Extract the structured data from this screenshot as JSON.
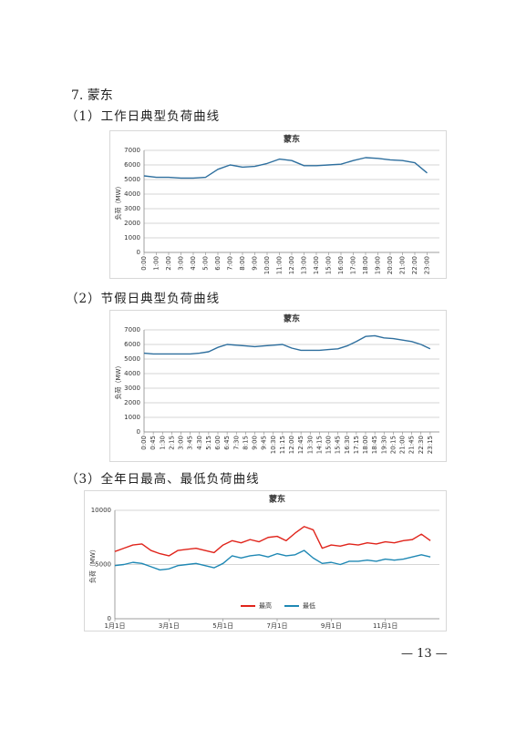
{
  "heading": "7. 蒙东",
  "captions": [
    "（1）工作日典型负荷曲线",
    "（2）节假日典型负荷曲线",
    "（3）全年日最高、最低负荷曲线"
  ],
  "page_number": "— 13 —",
  "chart_data": [
    {
      "type": "line",
      "title": "蒙东",
      "y_label": "负荷（MW）",
      "color": "#2e6f9e",
      "grid": true,
      "rotate_x_labels": true,
      "categories": [
        "0:00",
        "1:00",
        "2:00",
        "3:00",
        "4:00",
        "5:00",
        "6:00",
        "7:00",
        "8:00",
        "9:00",
        "10:00",
        "11:00",
        "12:00",
        "13:00",
        "14:00",
        "15:00",
        "16:00",
        "17:00",
        "18:00",
        "19:00",
        "20:00",
        "21:00",
        "22:00",
        "23:00"
      ],
      "values": [
        5250,
        5150,
        5150,
        5100,
        5100,
        5150,
        5700,
        6000,
        5850,
        5900,
        6100,
        6400,
        6300,
        5950,
        5950,
        6000,
        6050,
        6300,
        6500,
        6450,
        6350,
        6300,
        6150,
        5450
      ],
      "ylim": [
        0,
        7000
      ],
      "yticks": [
        0,
        1000,
        2000,
        3000,
        4000,
        5000,
        6000,
        7000
      ]
    },
    {
      "type": "line",
      "title": "蒙东",
      "y_label": "负荷（MW）",
      "color": "#2e6f9e",
      "grid": true,
      "rotate_x_labels": true,
      "categories": [
        "0:00",
        "0:45",
        "1:30",
        "2:15",
        "3:00",
        "3:45",
        "4:30",
        "5:15",
        "6:00",
        "6:45",
        "7:30",
        "8:15",
        "9:00",
        "9:45",
        "10:30",
        "11:15",
        "12:00",
        "12:45",
        "13:30",
        "14:15",
        "15:00",
        "15:45",
        "16:30",
        "17:15",
        "18:00",
        "18:45",
        "19:30",
        "20:15",
        "21:00",
        "21:45",
        "22:30",
        "23:15"
      ],
      "values": [
        5400,
        5350,
        5350,
        5350,
        5350,
        5350,
        5400,
        5500,
        5800,
        6000,
        5950,
        5900,
        5850,
        5900,
        5950,
        6000,
        5750,
        5600,
        5600,
        5600,
        5650,
        5700,
        5900,
        6200,
        6550,
        6600,
        6450,
        6400,
        6300,
        6200,
        6000,
        5700
      ],
      "ylim": [
        0,
        7000
      ],
      "yticks": [
        0,
        1000,
        2000,
        3000,
        4000,
        5000,
        6000,
        7000
      ]
    },
    {
      "type": "line",
      "title": "蒙东",
      "y_label": "负荷（MW）",
      "grid": true,
      "rotate_x_labels": false,
      "legend": "bottom",
      "categories": [
        "1月1日",
        null,
        null,
        null,
        null,
        null,
        "3月1日",
        null,
        null,
        null,
        null,
        null,
        "5月1日",
        null,
        null,
        null,
        null,
        null,
        "7月1日",
        null,
        null,
        null,
        null,
        null,
        "9月1日",
        null,
        null,
        null,
        null,
        null,
        "11月1日",
        null,
        null,
        null,
        null,
        null
      ],
      "series": [
        {
          "name": "最高",
          "color": "#e0241b",
          "values": [
            6200,
            6500,
            6800,
            6900,
            6300,
            6000,
            5800,
            6300,
            6400,
            6500,
            6300,
            6100,
            6800,
            7200,
            7000,
            7300,
            7100,
            7500,
            7600,
            7200,
            7900,
            8500,
            8200,
            6500,
            6800,
            6700,
            6900,
            6800,
            7000,
            6900,
            7100,
            7000,
            7200,
            7300,
            7800,
            7200
          ]
        },
        {
          "name": "最低",
          "color": "#1f88b4",
          "values": [
            4900,
            5000,
            5200,
            5100,
            4800,
            4500,
            4600,
            4900,
            5000,
            5100,
            4900,
            4700,
            5100,
            5800,
            5600,
            5800,
            5900,
            5700,
            6000,
            5800,
            5900,
            6300,
            5600,
            5100,
            5200,
            5000,
            5300,
            5300,
            5400,
            5300,
            5500,
            5400,
            5500,
            5700,
            5900,
            5700
          ]
        }
      ],
      "ylim": [
        0,
        10000
      ],
      "yticks": [
        0,
        5000,
        10000
      ]
    }
  ]
}
